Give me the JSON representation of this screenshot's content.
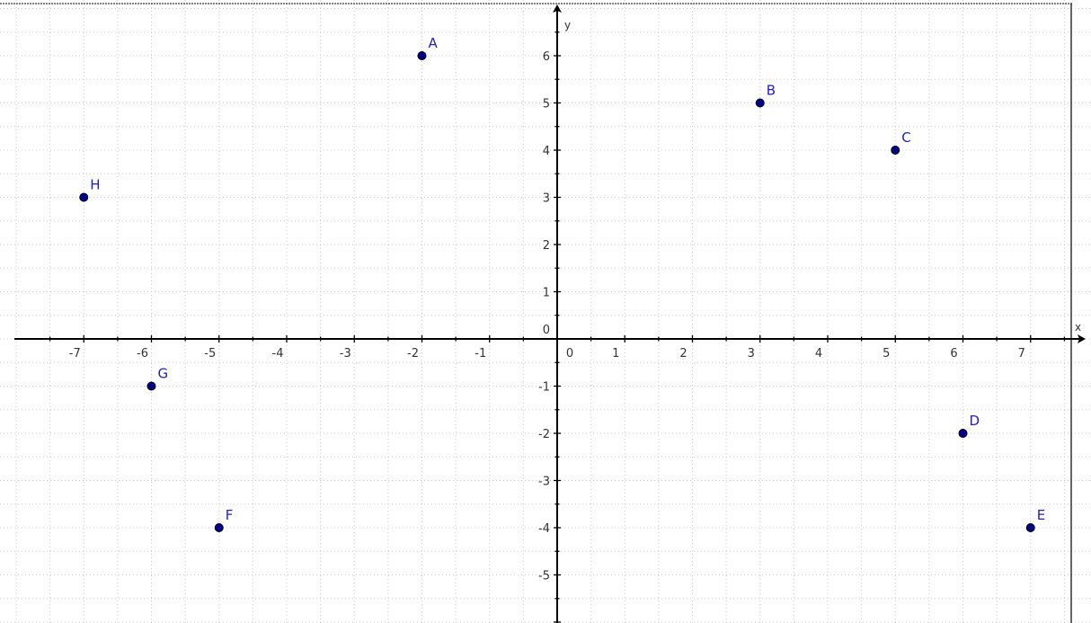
{
  "chart_data": {
    "type": "scatter",
    "xlabel": "x",
    "ylabel": "y",
    "xlim": [
      -8,
      7.8
    ],
    "ylim": [
      -6,
      6.8
    ],
    "grid": true,
    "x_ticks": [
      -7,
      -6,
      -5,
      -4,
      -3,
      -2,
      -1,
      0,
      1,
      2,
      3,
      4,
      5,
      6,
      7
    ],
    "y_ticks": [
      -5,
      -4,
      -3,
      -2,
      -1,
      0,
      1,
      2,
      3,
      4,
      5,
      6
    ],
    "points": [
      {
        "label": "A",
        "x": -2,
        "y": 6
      },
      {
        "label": "B",
        "x": 3,
        "y": 5
      },
      {
        "label": "C",
        "x": 5,
        "y": 4
      },
      {
        "label": "D",
        "x": 6,
        "y": -2
      },
      {
        "label": "E",
        "x": 7,
        "y": -4
      },
      {
        "label": "F",
        "x": -5,
        "y": -4
      },
      {
        "label": "G",
        "x": -6,
        "y": -1
      },
      {
        "label": "H",
        "x": -7,
        "y": 3
      }
    ],
    "point_color": "#00008b",
    "label_color": "#2020c0",
    "axis_color": "#000000",
    "grid_color": "#c8c8c8"
  }
}
